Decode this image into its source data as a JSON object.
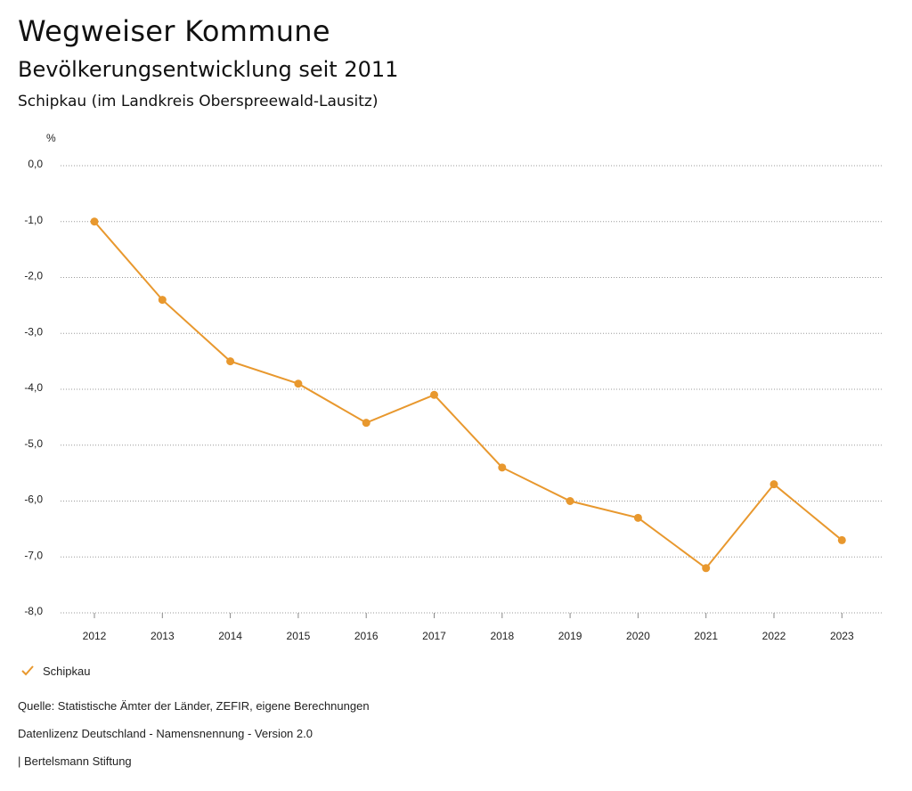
{
  "header": {
    "title": "Wegweiser Kommune",
    "subtitle": "Bevölkerungsentwicklung seit 2011",
    "region": "Schipkau (im Landkreis Oberspreewald-Lausitz)"
  },
  "chart_data": {
    "type": "line",
    "unit_label": "%",
    "categories": [
      "2012",
      "2013",
      "2014",
      "2015",
      "2016",
      "2017",
      "2018",
      "2019",
      "2020",
      "2021",
      "2022",
      "2023"
    ],
    "series": [
      {
        "name": "Schipkau",
        "color": "#e8982e",
        "values": [
          -1.0,
          -2.4,
          -3.5,
          -3.9,
          -4.6,
          -4.1,
          -5.4,
          -6.0,
          -6.3,
          -7.2,
          -5.7,
          -6.7
        ]
      }
    ],
    "yticks": [
      0,
      -1,
      -2,
      -3,
      -4,
      -5,
      -6,
      -7,
      -8
    ],
    "ytick_labels": [
      "0,0",
      "-1,0",
      "-2,0",
      "-3,0",
      "-4,0",
      "-5,0",
      "-6,0",
      "-7,0",
      "-8,0"
    ],
    "ylim": [
      -8,
      0
    ],
    "grid": true,
    "legend_position": "bottom-left"
  },
  "footer": {
    "source": "Quelle: Statistische Ämter der Länder, ZEFIR, eigene Berechnungen",
    "license": "Datenlizenz Deutschland - Namensnennung - Version 2.0",
    "credit": "| Bertelsmann Stiftung"
  }
}
